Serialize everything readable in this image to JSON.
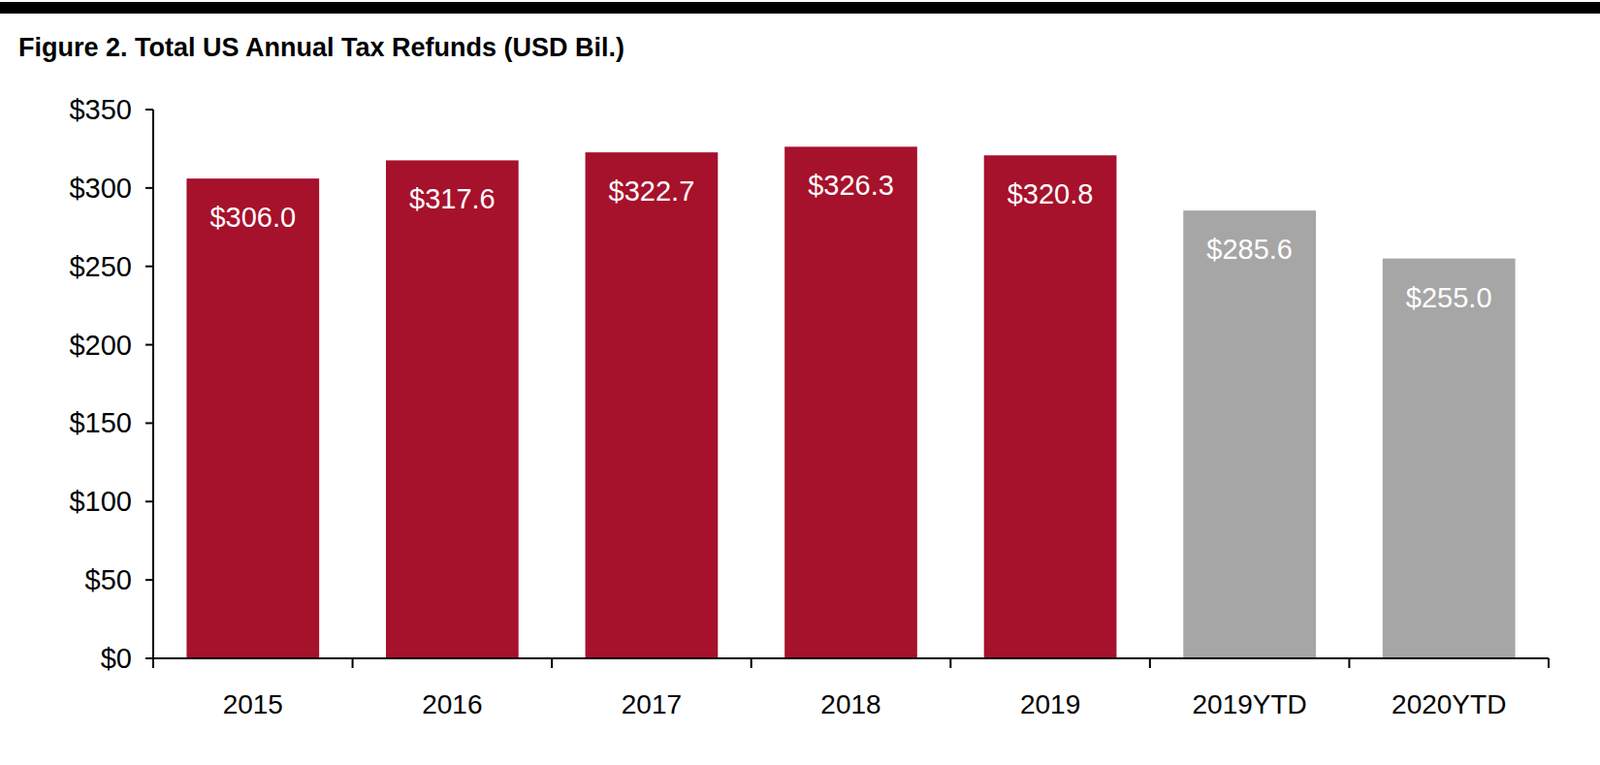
{
  "chart_data": {
    "type": "bar",
    "title": "Figure 2. Total US Annual Tax Refunds (USD Bil.)",
    "categories": [
      "2015",
      "2016",
      "2017",
      "2018",
      "2019",
      "2019YTD",
      "2020YTD"
    ],
    "values": [
      306.0,
      317.6,
      322.7,
      326.3,
      320.8,
      285.6,
      255.0
    ],
    "value_labels": [
      "$306.0",
      "$317.6",
      "$322.7",
      "$326.3",
      "$320.8",
      "$285.6",
      "$255.0"
    ],
    "colors": [
      "#a6112b",
      "#a6112b",
      "#a6112b",
      "#a6112b",
      "#a6112b",
      "#a6a6a6",
      "#a6a6a6"
    ],
    "ylim": [
      0,
      350
    ],
    "yticks": [
      {
        "value": 0,
        "label": "$0"
      },
      {
        "value": 50,
        "label": "$50"
      },
      {
        "value": 100,
        "label": "$100"
      },
      {
        "value": 150,
        "label": "$150"
      },
      {
        "value": 200,
        "label": "$200"
      },
      {
        "value": 250,
        "label": "$250"
      },
      {
        "value": 300,
        "label": "$300"
      },
      {
        "value": 350,
        "label": "$350"
      }
    ],
    "grid": false,
    "data_labels": true
  }
}
